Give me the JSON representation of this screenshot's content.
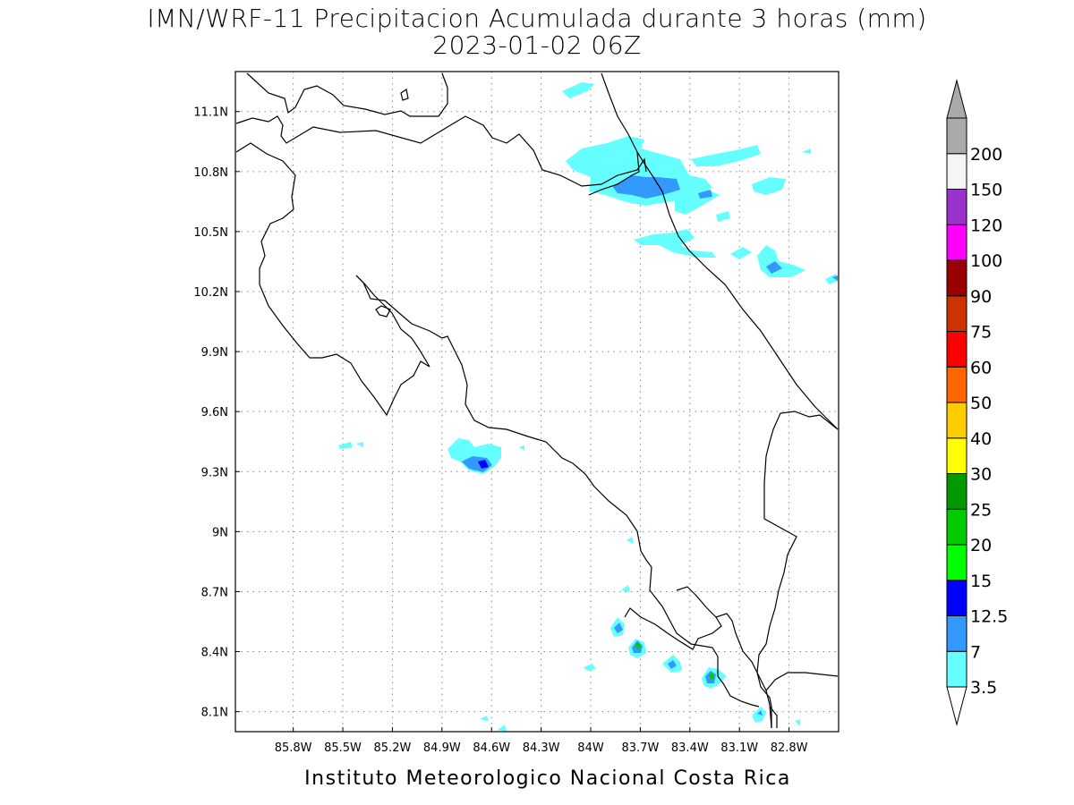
{
  "title_line1": "IMN/WRF-11 Precipitacion Acumulada durante 3 horas (mm)",
  "title_line2": "2023-01-02 06Z",
  "footer": "Instituto Meteorologico Nacional Costa Rica",
  "map": {
    "lon_range": [
      -86.15,
      -82.5
    ],
    "lat_range": [
      8.0,
      11.3
    ],
    "x_ticks": [
      {
        "value": -85.8,
        "label": "85.8W"
      },
      {
        "value": -85.5,
        "label": "85.5W"
      },
      {
        "value": -85.2,
        "label": "85.2W"
      },
      {
        "value": -84.9,
        "label": "84.9W"
      },
      {
        "value": -84.6,
        "label": "84.6W"
      },
      {
        "value": -84.3,
        "label": "84.3W"
      },
      {
        "value": -84.0,
        "label": "84W"
      },
      {
        "value": -83.7,
        "label": "83.7W"
      },
      {
        "value": -83.4,
        "label": "83.4W"
      },
      {
        "value": -83.1,
        "label": "83.1W"
      },
      {
        "value": -82.8,
        "label": "82.8W"
      }
    ],
    "y_ticks": [
      {
        "value": 11.1,
        "label": "11.1N"
      },
      {
        "value": 10.8,
        "label": "10.8N"
      },
      {
        "value": 10.5,
        "label": "10.5N"
      },
      {
        "value": 10.2,
        "label": "10.2N"
      },
      {
        "value": 9.9,
        "label": "9.9N"
      },
      {
        "value": 9.6,
        "label": "9.6N"
      },
      {
        "value": 9.3,
        "label": "9.3N"
      },
      {
        "value": 9.0,
        "label": "9N"
      },
      {
        "value": 8.7,
        "label": "8.7N"
      },
      {
        "value": 8.4,
        "label": "8.4N"
      },
      {
        "value": 8.1,
        "label": "8.1N"
      }
    ],
    "grid": true
  },
  "colorbar": {
    "levels": [
      {
        "label": "3.5",
        "color": "#66ffff"
      },
      {
        "label": "7",
        "color": "#3399ff"
      },
      {
        "label": "12.5",
        "color": "#0000ff"
      },
      {
        "label": "15",
        "color": "#00ff00"
      },
      {
        "label": "20",
        "color": "#00cc00"
      },
      {
        "label": "25",
        "color": "#009900"
      },
      {
        "label": "30",
        "color": "#ffff00"
      },
      {
        "label": "40",
        "color": "#ffcc00"
      },
      {
        "label": "50",
        "color": "#ff6600"
      },
      {
        "label": "60",
        "color": "#ff0000"
      },
      {
        "label": "75",
        "color": "#cc3300"
      },
      {
        "label": "90",
        "color": "#990000"
      },
      {
        "label": "100",
        "color": "#ff00ff"
      },
      {
        "label": "120",
        "color": "#9933cc"
      },
      {
        "label": "150",
        "color": "#f5f5f5"
      },
      {
        "label": "200",
        "color": "#aaaaaa"
      }
    ],
    "top_triangle_color": "#aaaaaa",
    "bottom_triangle_color": "#ffffff"
  }
}
